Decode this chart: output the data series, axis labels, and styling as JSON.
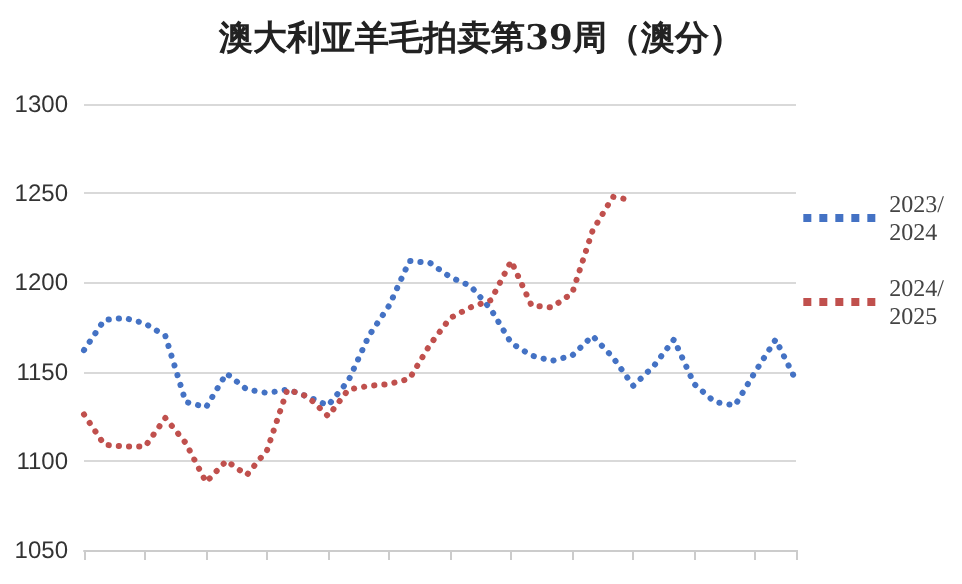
{
  "chart_data": {
    "type": "line",
    "title": "澳大利亚羊毛拍卖第39周（澳分）",
    "categories": [
      null,
      null,
      null,
      null,
      null,
      null,
      null,
      null,
      null,
      null,
      null,
      null,
      null,
      null,
      null,
      null,
      null,
      null,
      null,
      null,
      null,
      null,
      null,
      null,
      null,
      null,
      null,
      null,
      null,
      null,
      null,
      null,
      null,
      null,
      null,
      null
    ],
    "series": [
      {
        "name": "2023/2024",
        "color": "#4472c4",
        "values": [
          1162,
          1179,
          1180,
          1177,
          1170,
          1133,
          1130,
          1149,
          1140,
          1138,
          1140,
          1136,
          1131,
          1145,
          1170,
          1187,
          1212,
          1211,
          1203,
          1198,
          1185,
          1166,
          1159,
          1156,
          1159,
          1170,
          1158,
          1142,
          1153,
          1168,
          1143,
          1133,
          1131,
          1150,
          1168,
          1145
        ]
      },
      {
        "name": "2024/2025",
        "color": "#c0504d",
        "values": [
          1126,
          1109,
          1108,
          1108,
          1124,
          1110,
          1088,
          1100,
          1092,
          1106,
          1140,
          1136,
          1125,
          1140,
          1142,
          1143,
          1146,
          1165,
          1180,
          1186,
          1190,
          1212,
          1187,
          1186,
          1194,
          1229,
          1248,
          1246,
          null,
          null,
          null,
          null,
          null,
          null,
          null,
          null
        ]
      }
    ],
    "ylim": [
      1050,
      1300
    ],
    "yticks": [
      1050,
      1100,
      1150,
      1200,
      1250,
      1300
    ],
    "grid": "y",
    "legend": "right",
    "line_style": "dotted",
    "marker": "none",
    "tick_labels": "y"
  }
}
